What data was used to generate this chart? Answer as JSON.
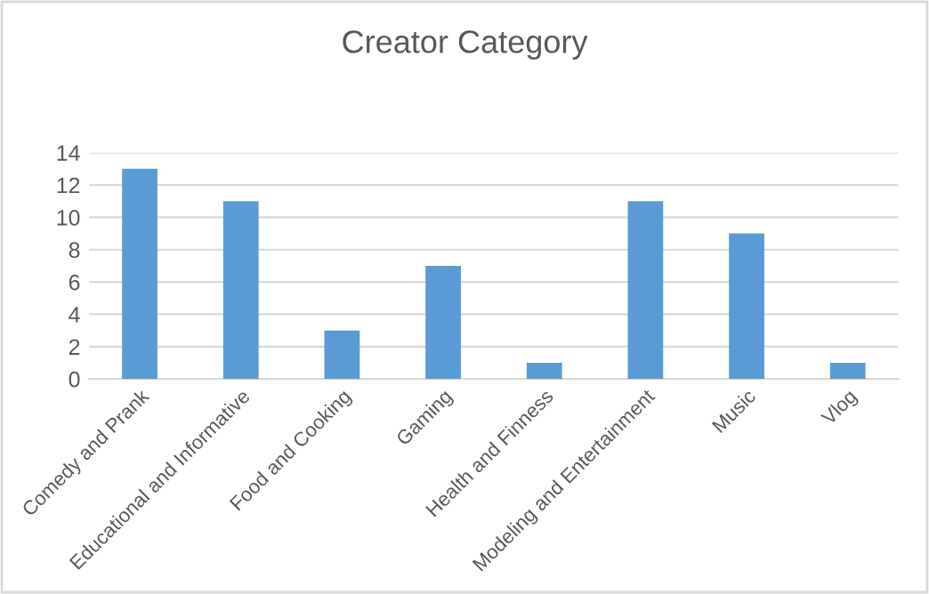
{
  "chart_data": {
    "type": "bar",
    "title": "Creator Category",
    "categories": [
      "Comedy and Prank",
      "Educational and Informative",
      "Food and Cooking",
      "Gaming",
      "Health and Finness",
      "Modeling and Entertainment",
      "Music",
      "Vlog"
    ],
    "values": [
      13,
      11,
      3,
      7,
      1,
      11,
      9,
      1
    ],
    "color": "#5b9bd5",
    "ylim": [
      0,
      14
    ],
    "yticks": [
      0,
      2,
      4,
      6,
      8,
      10,
      12,
      14
    ],
    "grid": "y"
  }
}
